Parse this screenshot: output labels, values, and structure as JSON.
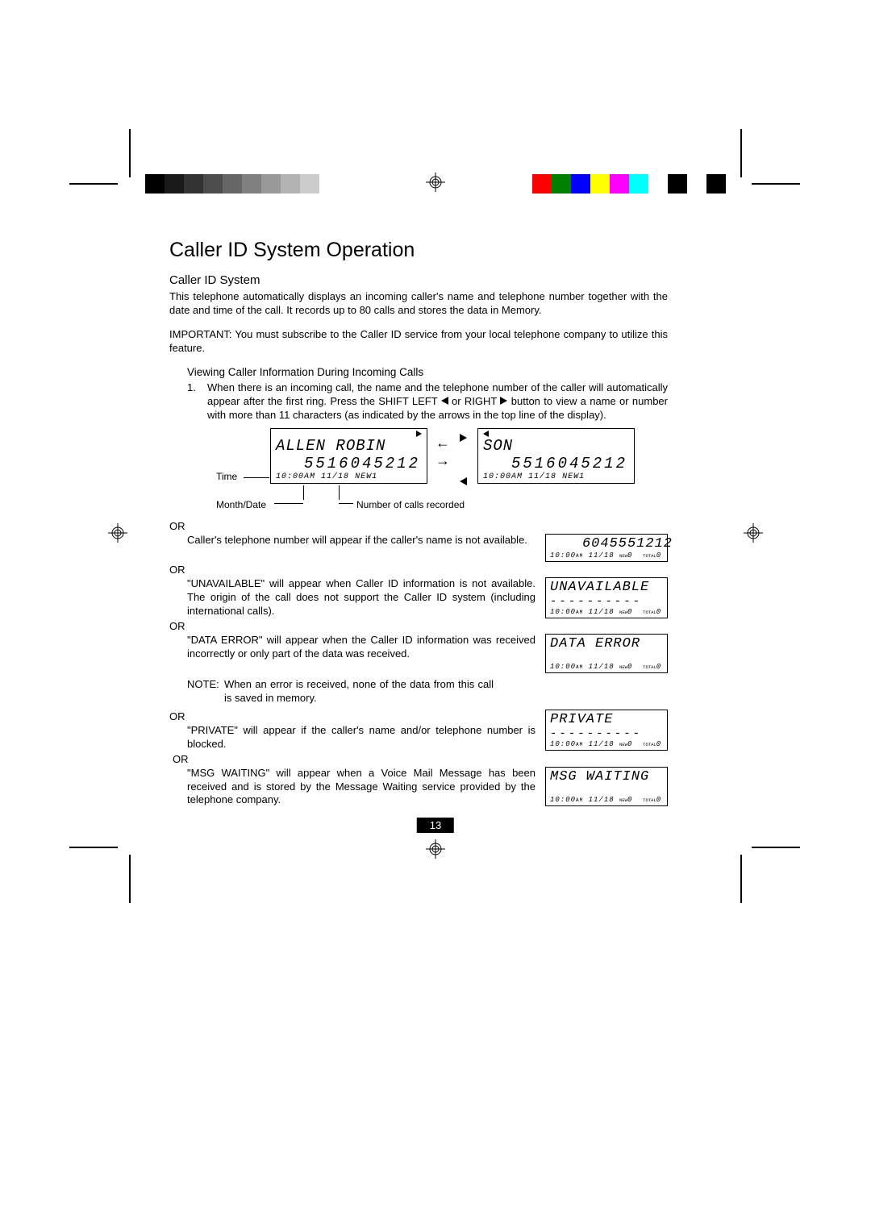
{
  "colorbar_left": [
    "#000000",
    "#1a1a1a",
    "#333333",
    "#4d4d4d",
    "#666666",
    "#808080",
    "#999999",
    "#b3b3b3",
    "#cccccc",
    "#ffffff"
  ],
  "colorbar_right": [
    "#ff0000",
    "#008000",
    "#0000ff",
    "#ffff00",
    "#ff00ff",
    "#00ffff",
    "#ffffff",
    "#000000",
    "#ffffff",
    "#000000"
  ],
  "title": "Caller ID System Operation",
  "section": "Caller ID System",
  "intro": "This telephone automatically displays an incoming caller's name and telephone number together with the date and time of the call. It records up to 80 calls and stores the data in Memory.",
  "important": "IMPORTANT: You must subscribe to the Caller ID service from your local telephone company to utilize this feature.",
  "viewing_head": "Viewing Caller Information During Incoming Calls",
  "item1_num": "1.",
  "item1_a": "When there is an incoming call, the name and the telephone number of the caller will automatically appear after the first ring. Press the SHIFT LEFT ",
  "item1_b": " or RIGHT ",
  "item1_c": " button to view a name or number with more than 11 characters (as indicated by the arrows in the top line of the display).",
  "diagram": {
    "time_label": "Time",
    "month_label": "Month/Date",
    "calls_label": "Number of calls recorded",
    "left_lcd": {
      "name": "ALLEN ROBIN",
      "num": "5516045212",
      "time": "10:00",
      "date": "11/18",
      "new": "1"
    },
    "right_lcd": {
      "name": "SON",
      "num": "5516045212",
      "time": "10:00",
      "date": "11/18",
      "new": "1"
    }
  },
  "or": "OR",
  "case_number": "Caller's telephone number will appear if the caller's name is not available.",
  "lcd_number": {
    "line1": "6045551212",
    "time": "10:00",
    "date": "11/18",
    "new": "0",
    "total": "0"
  },
  "case_unavail": "\"UNAVAILABLE\" will appear when Caller ID information is not available. The origin of the call does not support the Caller ID system (including international calls).",
  "lcd_unavail": {
    "line1": "UNAVAILABLE",
    "time": "10:00",
    "date": "11/18",
    "new": "0",
    "total": "0"
  },
  "case_data": "\"DATA ERROR\" will appear when the Caller ID information was received incorrectly or only part of the data was received.",
  "lcd_data": {
    "line1": "DATA ERROR",
    "time": "10:00",
    "date": "11/18",
    "new": "0",
    "total": "0"
  },
  "note_label": "NOTE:",
  "note_text": "When an error is received, none of the data from this call is saved in memory.",
  "case_private": "\"PRIVATE\" will appear if the caller's name and/or telephone number is blocked.",
  "lcd_private": {
    "line1": "PRIVATE",
    "time": "10:00",
    "date": "11/18",
    "new": "0",
    "total": "0"
  },
  "case_msg": "\"MSG WAITING\" will appear when a Voice Mail Message has been received and is stored by the Message Waiting service provided by the telephone company.",
  "lcd_msg": {
    "line1": "MSG WAITING",
    "time": "10:00",
    "date": "11/18",
    "new": "0",
    "total": "0"
  },
  "page_number": "13"
}
